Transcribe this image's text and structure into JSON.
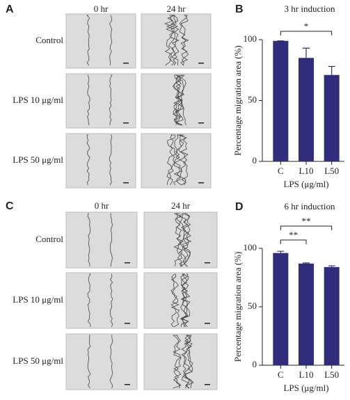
{
  "image_panels": [
    {
      "label": "A",
      "columns": [
        "0 hr",
        "24 hr"
      ],
      "rows": [
        "Control",
        "LPS 10 μg/ml",
        "LPS 50 μg/ml"
      ]
    },
    {
      "label": "C",
      "columns": [
        "0 hr",
        "24 hr"
      ],
      "rows": [
        "Control",
        "LPS 10 μg/ml",
        "LPS 50 μg/ml"
      ]
    }
  ],
  "chart_data": [
    {
      "type": "bar",
      "label": "B",
      "title": "3 hr induction",
      "x_label": "LPS (μg/ml)",
      "y_label": "Percentage migration area (%)",
      "categories": [
        "C",
        "L10",
        "L50"
      ],
      "values": [
        99,
        85,
        71
      ],
      "errors": [
        0,
        8,
        7
      ],
      "color": "#2f2d7c",
      "ylim": [
        0,
        100
      ],
      "yticks": [
        0,
        50,
        100
      ],
      "comparisons": [
        {
          "groups": [
            "C",
            "L50"
          ],
          "label": "*"
        }
      ]
    },
    {
      "type": "bar",
      "label": "D",
      "title": "6 hr induction",
      "x_label": "LPS (μg/ml)",
      "y_label": "Percentage migration area (%)",
      "categories": [
        "C",
        "L10",
        "L50"
      ],
      "values": [
        96,
        87,
        84
      ],
      "errors": [
        1.5,
        0.5,
        1
      ],
      "color": "#2f2d7c",
      "ylim": [
        0,
        100
      ],
      "yticks": [
        0,
        50,
        100
      ],
      "comparisons": [
        {
          "groups": [
            "C",
            "L10"
          ],
          "label": "**"
        },
        {
          "groups": [
            "C",
            "L50"
          ],
          "label": "**"
        }
      ]
    }
  ]
}
